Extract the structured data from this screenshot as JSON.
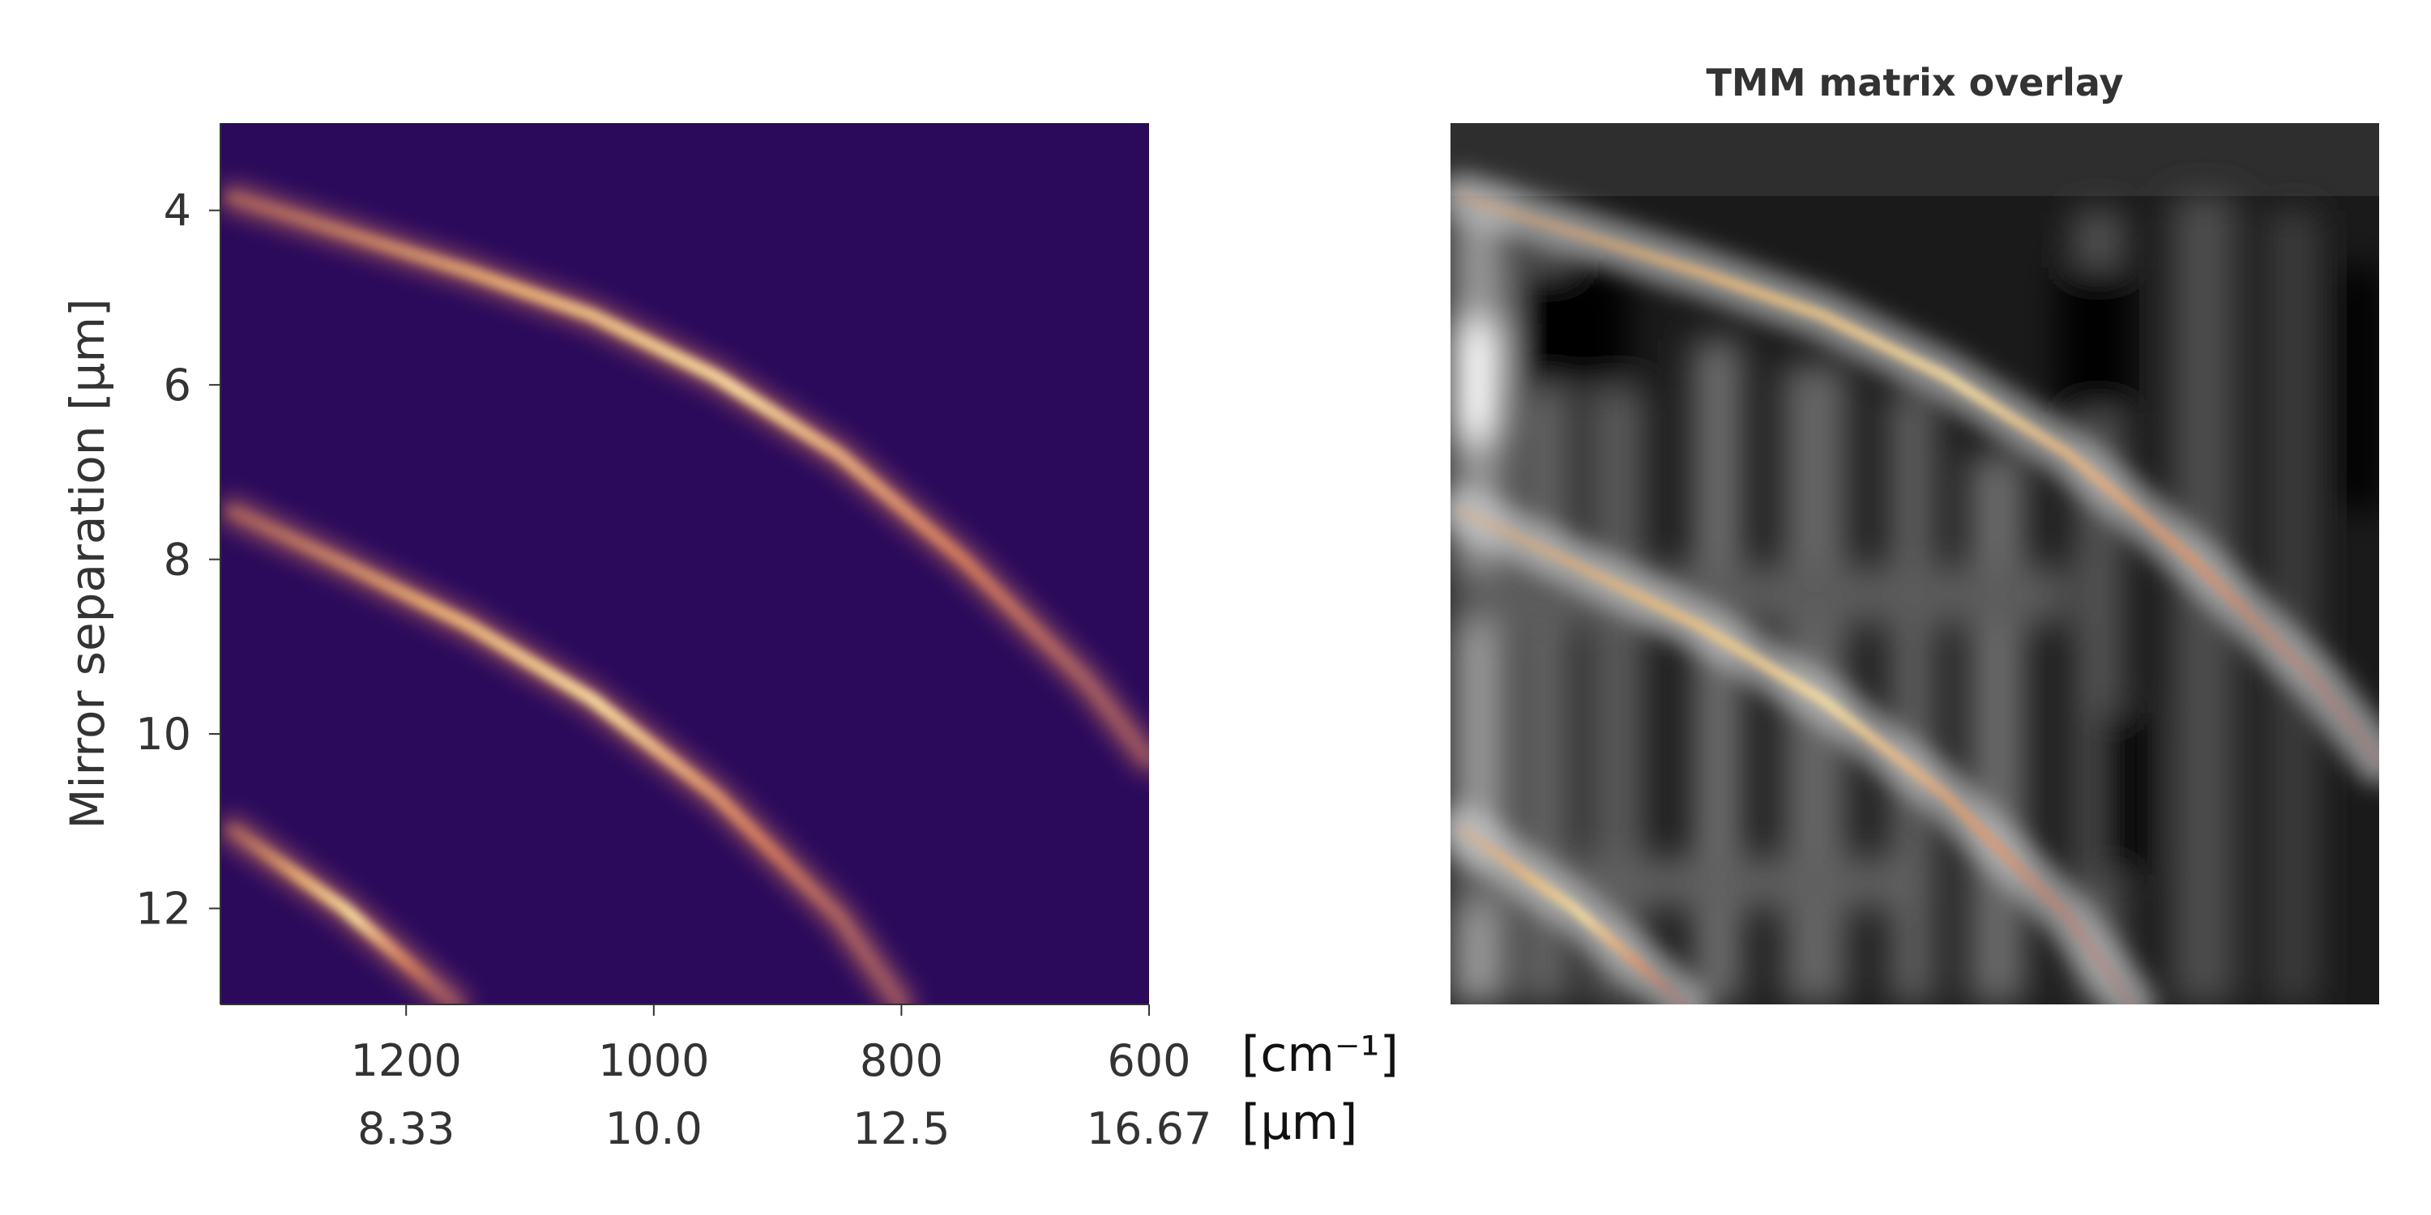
{
  "chart_data": [
    {
      "type": "heatmap",
      "title": "",
      "ylabel": "Mirror separation [μm]",
      "xlabel": "",
      "x_ticks_primary": [
        {
          "value": 1200,
          "label": "1200"
        },
        {
          "value": 1000,
          "label": "1000"
        },
        {
          "value": 800,
          "label": "800"
        },
        {
          "value": 600,
          "label": "600"
        }
      ],
      "x_ticks_secondary": [
        "8.33",
        "10.0",
        "12.5",
        "16.67"
      ],
      "x_unit_primary": "[cm⁻¹]",
      "x_unit_secondary": "[μm]",
      "y_ticks": [
        {
          "value": 4,
          "label": "4"
        },
        {
          "value": 6,
          "label": "6"
        },
        {
          "value": 8,
          "label": "8"
        },
        {
          "value": 10,
          "label": "10"
        },
        {
          "value": 12,
          "label": "12"
        }
      ],
      "xlim": [
        1350,
        600
      ],
      "ylim": [
        3,
        13.1
      ],
      "colormap": "magma",
      "background_color": "#2b0a5c",
      "series": [
        {
          "x": [
            1340,
            1250,
            1150,
            1050,
            950,
            850,
            750,
            650,
            600
          ],
          "y": [
            3.85,
            4.25,
            4.7,
            5.2,
            5.9,
            6.8,
            8.0,
            9.4,
            10.3
          ]
        },
        {
          "x": [
            1340,
            1250,
            1150,
            1050,
            950,
            850,
            800
          ],
          "y": [
            7.45,
            8.05,
            8.75,
            9.6,
            10.7,
            12.1,
            13.1
          ]
        },
        {
          "x": [
            1340,
            1250,
            1160
          ],
          "y": [
            11.1,
            12.0,
            13.1
          ]
        }
      ]
    },
    {
      "type": "heatmap",
      "title": "TMM matrix overlay",
      "colormap": "gray",
      "overlay_colormap": "magma",
      "series": [
        {
          "x": [
            1340,
            1250,
            1150,
            1050,
            950,
            850,
            750,
            650,
            600
          ],
          "y": [
            3.85,
            4.25,
            4.7,
            5.2,
            5.9,
            6.8,
            8.0,
            9.4,
            10.3
          ]
        },
        {
          "x": [
            1340,
            1250,
            1150,
            1050,
            950,
            850,
            800
          ],
          "y": [
            7.45,
            8.05,
            8.75,
            9.6,
            10.7,
            12.1,
            13.1
          ]
        },
        {
          "x": [
            1340,
            1250,
            1160
          ],
          "y": [
            11.1,
            12.0,
            13.1
          ]
        }
      ]
    }
  ]
}
